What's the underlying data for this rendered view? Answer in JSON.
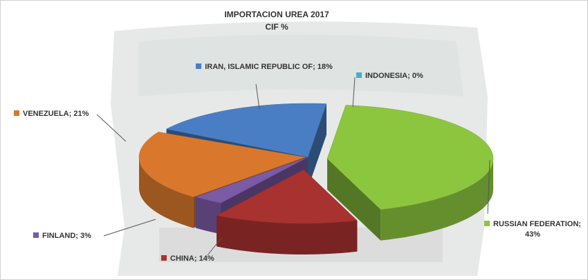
{
  "chart_data": {
    "type": "pie3d",
    "title": "IMPORTACION  UREA 2017",
    "subtitle": "CIF  %",
    "categories": [
      "IRAN, ISLAMIC REPUBLIC OF",
      "INDONESIA",
      "RUSSIAN FEDERATION",
      "CHINA",
      "FINLAND",
      "VENEZUELA"
    ],
    "values": [
      18,
      0,
      43,
      14,
      3,
      21
    ],
    "value_labels": [
      "18%",
      "0%",
      "43%",
      "14%",
      "3%",
      "21%"
    ],
    "label_separator": "; ",
    "colors": [
      "#4a7ec4",
      "#4bacc6",
      "#8cc63f",
      "#a8322f",
      "#7b5aa6",
      "#d9782d"
    ]
  }
}
